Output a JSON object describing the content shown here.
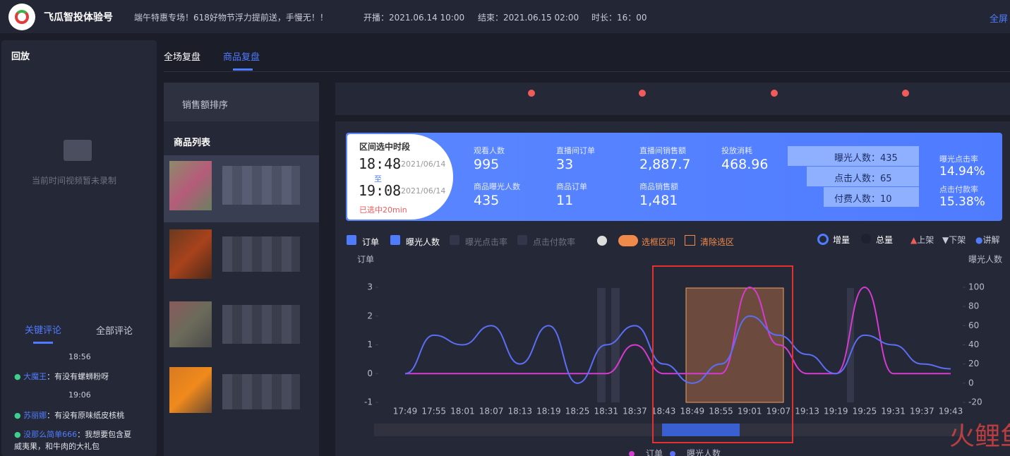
{
  "header": {
    "title": "飞瓜智投体验号",
    "subtitle": "端午特惠专场！618好物节浮力提前送，手慢无！！",
    "start": "开播：2021.06.14 10:00",
    "end": "结束：2021.06.15 02:00",
    "duration": "时长：16：00",
    "fullscreen": "全屏"
  },
  "left": {
    "title": "回放",
    "empty": "当前时间视频暂未录制",
    "tabs": [
      "关键评论",
      "全部评论"
    ],
    "comments": [
      {
        "time": "18:56",
        "user": "大魔王",
        "text": "：有没有螺蛳粉呀"
      },
      {
        "time": "19:06",
        "user": "苏丽娜",
        "text": "：有没有原味纸皮核桃"
      },
      {
        "user": "没那么简单666",
        "text": "：我想要包含夏威夷果，和牛肉的大礼包"
      }
    ]
  },
  "tabs": [
    "全场复盘",
    "商品复盘"
  ],
  "products": {
    "sort": "销售额排序",
    "title": "商品列表"
  },
  "stats": {
    "range_title": "区间选中时段",
    "start_time": "18:48",
    "start_date": "2021/06/14",
    "to": "至",
    "end_time": "19:08",
    "end_date": "2021/06/14",
    "selected": "已选中20min",
    "metrics": [
      {
        "label": "观看人数",
        "value": "995"
      },
      {
        "label": "直播间订单",
        "value": "33"
      },
      {
        "label": "直播间销售额",
        "value": "2,887.7"
      },
      {
        "label": "投放消耗",
        "value": "468.96"
      },
      {
        "label": "商品曝光人数",
        "value": "435"
      },
      {
        "label": "商品订单",
        "value": "11"
      },
      {
        "label": "商品销售额",
        "value": "1,481"
      }
    ],
    "funnel": [
      "曝光人数：435",
      "点击人数：65",
      "付费人数：10"
    ],
    "rates": [
      {
        "label": "曝光点击率",
        "value": "14.94%"
      },
      {
        "label": "点击付款率",
        "value": "15.38%"
      }
    ]
  },
  "controls": {
    "checks": [
      "订单",
      "曝光人数",
      "曝光点击率",
      "点击付款率"
    ],
    "select": "选框区间",
    "clear": "清除选区",
    "radios": [
      "增量",
      "总量"
    ],
    "markers": [
      "上架",
      "下架",
      "讲解"
    ]
  },
  "chart_data": {
    "type": "line",
    "ylabel": "订单",
    "y2label": "曝光人数",
    "categories": [
      "17:49",
      "17:55",
      "18:01",
      "18:07",
      "18:13",
      "18:19",
      "18:25",
      "18:31",
      "18:37",
      "18:43",
      "18:49",
      "18:55",
      "19:01",
      "19:07",
      "19:13",
      "19:19",
      "19:25",
      "19:31",
      "19:37",
      "19:43"
    ],
    "series": [
      {
        "name": "订单",
        "color": "#d63bd1",
        "values": [
          0,
          0,
          0,
          0,
          0,
          0,
          0,
          0,
          1,
          0,
          0,
          0,
          3,
          1,
          0,
          0,
          3,
          0,
          0,
          0
        ]
      },
      {
        "name": "曝光人数",
        "color": "#5b6ef5",
        "axis": "y2",
        "values": [
          10,
          50,
          40,
          60,
          20,
          60,
          0,
          40,
          60,
          20,
          0,
          20,
          70,
          50,
          30,
          10,
          50,
          40,
          20,
          15
        ]
      }
    ],
    "ylim": [
      -1,
      3
    ],
    "yticks": [
      -1,
      0,
      1,
      2,
      3
    ],
    "y2lim": [
      -20,
      100
    ],
    "y2ticks": [
      -20,
      0,
      20,
      40,
      60,
      80,
      100
    ]
  },
  "watermark": "火鲤鱼"
}
